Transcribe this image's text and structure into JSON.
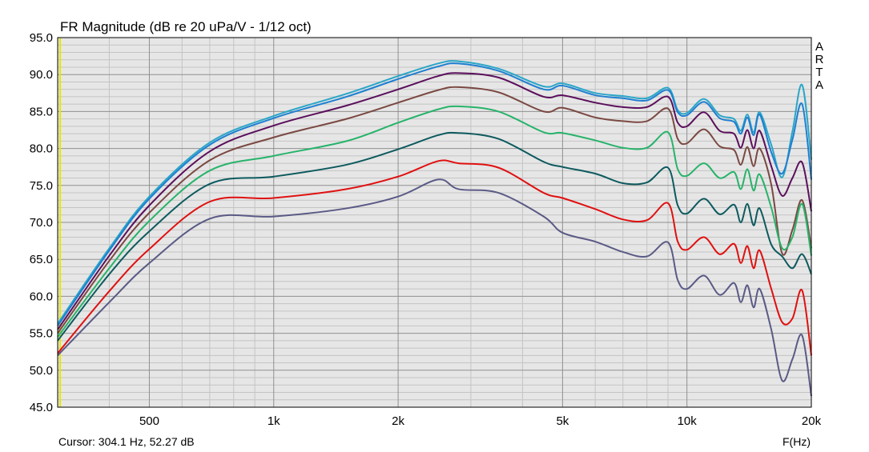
{
  "chart_data": {
    "type": "line",
    "title": "FR Magnitude (dB re 20 uPa/V - 1/12 oct)",
    "xlabel": "F(Hz)",
    "ylabel": "",
    "xscale": "log",
    "xlim": [
      300,
      20000
    ],
    "ylim": [
      45,
      95
    ],
    "x_tick_values": [
      500,
      1000,
      2000,
      5000,
      10000,
      20000
    ],
    "x_tick_labels": [
      "500",
      "1k",
      "2k",
      "5k",
      "10k",
      "20k"
    ],
    "y_tick_values": [
      45,
      50,
      55,
      60,
      65,
      70,
      75,
      80,
      85,
      90,
      95
    ],
    "y_tick_labels": [
      "45.0",
      "50.0",
      "55.0",
      "60.0",
      "65.0",
      "70.0",
      "75.0",
      "80.0",
      "85.0",
      "90.0",
      "95.0"
    ],
    "grid": true,
    "watermark": "ARTA",
    "cursor_readout": "Cursor: 304.1 Hz, 52.27 dB",
    "cursor_x": 304.1,
    "colors": {
      "background": "#e6e6e6",
      "major_grid": "#909090",
      "minor_grid": "#c4c4c4",
      "cursor": "#e6e600"
    },
    "series": [
      {
        "color": "#2aa6c8",
        "x": [
          300,
          400,
          500,
          700,
          1000,
          1500,
          2000,
          2500,
          2800,
          3500,
          4500,
          5000,
          6000,
          7000,
          8000,
          9000,
          9500,
          10000,
          11000,
          12000,
          13000,
          13500,
          14000,
          14500,
          15000,
          16000,
          17000,
          18000,
          19000,
          20000
        ],
        "y": [
          56.3,
          66.5,
          73.5,
          80.8,
          84.4,
          87.4,
          89.8,
          91.5,
          91.8,
          90.8,
          88.4,
          88.8,
          87.5,
          87.1,
          86.8,
          88.2,
          85.2,
          84.8,
          86.7,
          84.5,
          84.0,
          82.4,
          84.6,
          82.2,
          84.9,
          80.5,
          76.1,
          82.3,
          88.6,
          78.5
        ]
      },
      {
        "color": "#1e7fd0",
        "x": [
          300,
          400,
          500,
          700,
          1000,
          1500,
          2000,
          2500,
          2800,
          3500,
          4500,
          5000,
          6000,
          7000,
          8000,
          9000,
          9500,
          10000,
          11000,
          12000,
          13000,
          13500,
          14000,
          14500,
          15000,
          16000,
          17000,
          18000,
          19000,
          20000
        ],
        "y": [
          56.0,
          66.2,
          73.2,
          80.5,
          84.1,
          87.0,
          89.4,
          91.1,
          91.5,
          90.5,
          88.0,
          88.5,
          87.2,
          86.8,
          86.5,
          87.9,
          84.9,
          84.5,
          86.3,
          84.1,
          83.6,
          82.0,
          84.2,
          81.8,
          84.6,
          79.5,
          76.6,
          81.2,
          86.0,
          75.8
        ]
      },
      {
        "color": "#5b0f5c",
        "x": [
          300,
          400,
          500,
          700,
          1000,
          1500,
          2000,
          2500,
          2800,
          3500,
          4500,
          5000,
          6000,
          7000,
          8000,
          9000,
          9500,
          10000,
          11000,
          12000,
          13000,
          13500,
          14000,
          14500,
          15000,
          16000,
          17000,
          18000,
          19000,
          20000
        ],
        "y": [
          55.5,
          65.5,
          72.3,
          79.6,
          83.1,
          85.8,
          88.0,
          89.8,
          90.2,
          89.6,
          87.0,
          87.2,
          86.2,
          85.6,
          85.6,
          87.0,
          83.5,
          83.0,
          84.9,
          82.4,
          82.0,
          80.1,
          82.5,
          80.0,
          82.4,
          77.6,
          73.6,
          76.0,
          78.1,
          71.5
        ]
      },
      {
        "color": "#7b4842",
        "x": [
          300,
          400,
          500,
          700,
          1000,
          1500,
          2000,
          2500,
          2800,
          3500,
          4500,
          5000,
          6000,
          7000,
          8000,
          9000,
          9500,
          10000,
          11000,
          12000,
          13000,
          13500,
          14000,
          14500,
          15000,
          16000,
          17000,
          18000,
          19000,
          20000
        ],
        "y": [
          55.0,
          64.8,
          71.3,
          78.4,
          81.5,
          84.0,
          86.2,
          87.9,
          88.3,
          87.6,
          85.0,
          85.5,
          84.2,
          83.7,
          83.7,
          85.4,
          81.3,
          80.7,
          82.6,
          80.3,
          79.8,
          77.8,
          80.2,
          77.6,
          80.0,
          75.1,
          65.8,
          69.0,
          73.0,
          66.5
        ]
      },
      {
        "color": "#27b36a",
        "x": [
          300,
          400,
          500,
          700,
          1000,
          1500,
          2000,
          2500,
          2800,
          3500,
          4500,
          5000,
          6000,
          7000,
          8000,
          9000,
          9500,
          10000,
          11000,
          12000,
          13000,
          13500,
          14000,
          14500,
          15000,
          16000,
          17000,
          18000,
          19000,
          20000
        ],
        "y": [
          54.5,
          63.8,
          70.2,
          77.0,
          79.0,
          81.0,
          83.5,
          85.3,
          85.7,
          85.0,
          82.2,
          82.1,
          81.1,
          80.1,
          80.1,
          82.2,
          77.2,
          76.3,
          78.0,
          76.0,
          76.8,
          74.5,
          77.2,
          74.3,
          76.5,
          72.0,
          66.5,
          68.0,
          72.5,
          65.5
        ]
      },
      {
        "color": "#0d5a5e",
        "x": [
          300,
          400,
          500,
          700,
          1000,
          1500,
          2000,
          2500,
          2800,
          3500,
          4500,
          5000,
          6000,
          7000,
          8000,
          9000,
          9500,
          10000,
          11000,
          12000,
          13000,
          13500,
          14000,
          14500,
          15000,
          16000,
          17000,
          18000,
          19000,
          20000
        ],
        "y": [
          54.0,
          63.0,
          68.8,
          75.2,
          76.2,
          77.8,
          79.9,
          81.8,
          82.1,
          81.3,
          78.2,
          77.5,
          76.6,
          75.3,
          75.4,
          77.4,
          72.3,
          71.2,
          73.2,
          71.1,
          72.4,
          70.0,
          72.5,
          69.6,
          71.9,
          67.0,
          65.4,
          63.8,
          65.7,
          63.0
        ]
      },
      {
        "color": "#e01010",
        "x": [
          300,
          400,
          500,
          700,
          1000,
          1500,
          2000,
          2500,
          2800,
          3500,
          4500,
          5000,
          6000,
          7000,
          8000,
          9000,
          9500,
          10000,
          11000,
          12000,
          13000,
          13500,
          14000,
          14500,
          15000,
          16000,
          17000,
          18000,
          19000,
          20000
        ],
        "y": [
          52.3,
          60.7,
          66.4,
          72.8,
          73.3,
          74.5,
          76.2,
          78.3,
          78.0,
          77.4,
          74.0,
          73.3,
          71.8,
          70.4,
          70.3,
          72.6,
          67.4,
          66.3,
          68.0,
          65.7,
          67.1,
          64.5,
          66.8,
          63.8,
          66.2,
          61.0,
          56.5,
          57.0,
          60.8,
          52.0
        ]
      },
      {
        "color": "#5a5a86",
        "x": [
          300,
          400,
          500,
          700,
          1000,
          1500,
          2000,
          2500,
          2800,
          3500,
          4500,
          5000,
          6000,
          7000,
          8000,
          9000,
          9500,
          10000,
          11000,
          12000,
          13000,
          13500,
          14000,
          14500,
          15000,
          16000,
          17000,
          18000,
          19000,
          20000
        ],
        "y": [
          52.0,
          59.2,
          64.5,
          70.5,
          70.8,
          71.9,
          73.5,
          75.8,
          74.5,
          74.0,
          70.8,
          68.6,
          67.4,
          66.0,
          65.4,
          67.3,
          62.2,
          61.0,
          62.8,
          60.2,
          61.8,
          59.2,
          61.5,
          58.5,
          61.0,
          55.5,
          48.6,
          51.5,
          54.7,
          46.5
        ]
      }
    ]
  }
}
